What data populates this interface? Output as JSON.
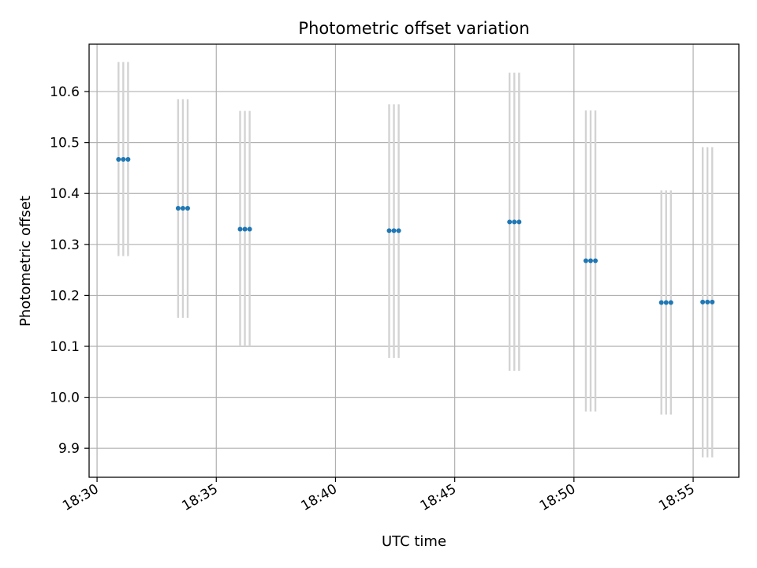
{
  "chart_data": {
    "type": "scatter",
    "title": "Photometric offset variation",
    "xlabel": "UTC time",
    "ylabel": "Photometric offset",
    "x_unit": "time (HH:MM, UTC)",
    "xlim": [
      "18:29:40",
      "18:56:55"
    ],
    "ylim": [
      9.843,
      10.693
    ],
    "grid": true,
    "xticks": [
      "18:30",
      "18:35",
      "18:40",
      "18:45",
      "18:50",
      "18:55"
    ],
    "yticks": [
      9.9,
      10.0,
      10.1,
      10.2,
      10.3,
      10.4,
      10.5,
      10.6
    ],
    "ytick_labels": [
      "9.9",
      "10.0",
      "10.1",
      "10.2",
      "10.3",
      "10.4",
      "10.5",
      "10.6"
    ],
    "colors": {
      "points": "#1f77b4",
      "errorbars": "#d3d3d3",
      "grid": "#b0b0b0"
    },
    "groups": [
      {
        "times": [
          "18:30:54",
          "18:31:06",
          "18:31:18"
        ],
        "value": 10.467,
        "err_low": 10.277,
        "err_high": 10.658
      },
      {
        "times": [
          "18:33:24",
          "18:33:36",
          "18:33:48"
        ],
        "value": 10.371,
        "err_low": 10.156,
        "err_high": 10.585
      },
      {
        "times": [
          "18:36:00",
          "18:36:12",
          "18:36:24"
        ],
        "value": 10.33,
        "err_low": 10.1,
        "err_high": 10.562
      },
      {
        "times": [
          "18:42:15",
          "18:42:27",
          "18:42:39"
        ],
        "value": 10.327,
        "err_low": 10.077,
        "err_high": 10.575
      },
      {
        "times": [
          "18:47:18",
          "18:47:30",
          "18:47:42"
        ],
        "value": 10.344,
        "err_low": 10.052,
        "err_high": 10.637
      },
      {
        "times": [
          "18:50:30",
          "18:50:42",
          "18:50:54"
        ],
        "value": 10.268,
        "err_low": 9.972,
        "err_high": 10.563
      },
      {
        "times": [
          "18:53:40",
          "18:53:52",
          "18:54:04"
        ],
        "value": 10.186,
        "err_low": 9.966,
        "err_high": 10.406
      },
      {
        "times": [
          "18:55:24",
          "18:55:36",
          "18:55:48"
        ],
        "value": 10.187,
        "err_low": 9.882,
        "err_high": 10.491
      }
    ]
  }
}
